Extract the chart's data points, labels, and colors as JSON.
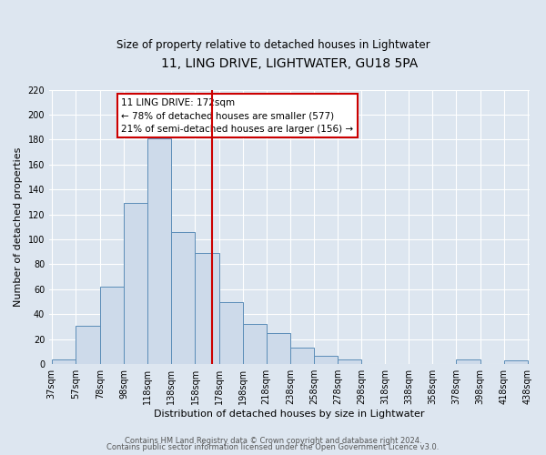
{
  "title": "11, LING DRIVE, LIGHTWATER, GU18 5PA",
  "subtitle": "Size of property relative to detached houses in Lightwater",
  "xlabel": "Distribution of detached houses by size in Lightwater",
  "ylabel": "Number of detached properties",
  "bin_edges": [
    37,
    57,
    78,
    98,
    118,
    138,
    158,
    178,
    198,
    218,
    238,
    258,
    278,
    298,
    318,
    338,
    358,
    378,
    398,
    418,
    438
  ],
  "bin_values": [
    4,
    31,
    62,
    129,
    181,
    106,
    89,
    50,
    32,
    25,
    13,
    7,
    4,
    0,
    0,
    0,
    0,
    4,
    0,
    3
  ],
  "tick_labels": [
    "37sqm",
    "57sqm",
    "78sqm",
    "98sqm",
    "118sqm",
    "138sqm",
    "158sqm",
    "178sqm",
    "198sqm",
    "218sqm",
    "238sqm",
    "258sqm",
    "278sqm",
    "298sqm",
    "318sqm",
    "338sqm",
    "358sqm",
    "378sqm",
    "398sqm",
    "418sqm",
    "438sqm"
  ],
  "bar_color": "#cddaea",
  "bar_edge_color": "#5b8db8",
  "vline_x": 172,
  "vline_color": "#cc0000",
  "annotation_title": "11 LING DRIVE: 172sqm",
  "annotation_line1": "← 78% of detached houses are smaller (577)",
  "annotation_line2": "21% of semi-detached houses are larger (156) →",
  "annotation_box_facecolor": "#ffffff",
  "annotation_box_edgecolor": "#cc0000",
  "ylim": [
    0,
    220
  ],
  "yticks": [
    0,
    20,
    40,
    60,
    80,
    100,
    120,
    140,
    160,
    180,
    200,
    220
  ],
  "footer1": "Contains HM Land Registry data © Crown copyright and database right 2024.",
  "footer2": "Contains public sector information licensed under the Open Government Licence v3.0.",
  "bg_color": "#dde6f0",
  "plot_bg_color": "#dde6f0",
  "grid_color": "#ffffff",
  "title_fontsize": 10,
  "subtitle_fontsize": 8.5,
  "ylabel_fontsize": 8,
  "xlabel_fontsize": 8,
  "tick_fontsize": 7,
  "footer_fontsize": 6
}
